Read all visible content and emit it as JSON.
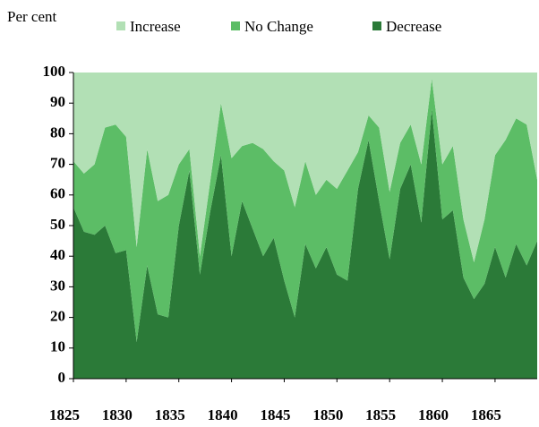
{
  "chart_data": {
    "type": "stacked_area",
    "y_label": "Per cent",
    "x": [
      1825,
      1826,
      1827,
      1828,
      1829,
      1830,
      1831,
      1832,
      1833,
      1834,
      1835,
      1836,
      1837,
      1838,
      1839,
      1840,
      1841,
      1842,
      1843,
      1844,
      1845,
      1846,
      1847,
      1848,
      1849,
      1850,
      1851,
      1852,
      1853,
      1854,
      1855,
      1856,
      1857,
      1858,
      1859,
      1860,
      1861,
      1862,
      1863,
      1864,
      1865,
      1866,
      1867,
      1868,
      1869
    ],
    "series": [
      {
        "name": "Decrease",
        "color": "#2b7a38",
        "values": [
          56,
          48,
          47,
          50,
          41,
          42,
          12,
          37,
          21,
          20,
          50,
          68,
          34,
          55,
          73,
          40,
          58,
          49,
          40,
          46,
          32,
          20,
          44,
          36,
          43,
          34,
          32,
          62,
          78,
          58,
          39,
          62,
          70,
          51,
          88,
          52,
          55,
          33,
          26,
          31,
          43,
          33,
          44,
          37,
          45
        ]
      },
      {
        "name": "No Change",
        "color": "#5cbd66",
        "values": [
          15,
          19,
          23,
          32,
          42,
          37,
          31,
          38,
          37,
          40,
          20,
          7,
          6,
          10,
          17,
          32,
          18,
          28,
          35,
          25,
          36,
          36,
          27,
          24,
          22,
          28,
          36,
          12,
          8,
          24,
          22,
          15,
          13,
          19,
          10,
          18,
          21,
          19,
          12,
          21,
          30,
          45,
          41,
          46,
          20
        ]
      },
      {
        "name": "Increase",
        "color": "#b2e0b5",
        "values": [
          29,
          33,
          30,
          18,
          17,
          21,
          57,
          25,
          42,
          40,
          30,
          25,
          60,
          35,
          10,
          28,
          24,
          23,
          25,
          29,
          32,
          44,
          29,
          40,
          35,
          38,
          32,
          26,
          14,
          18,
          39,
          23,
          17,
          30,
          2,
          30,
          24,
          48,
          62,
          48,
          27,
          22,
          15,
          17,
          35
        ]
      }
    ],
    "legend_order": [
      2,
      1,
      0
    ],
    "xlim": [
      1825,
      1869
    ],
    "xticks": [
      1825,
      1830,
      1835,
      1840,
      1845,
      1850,
      1855,
      1860,
      1865
    ],
    "ylim": [
      0,
      100
    ],
    "yticks": [
      0,
      10,
      20,
      30,
      40,
      50,
      60,
      70,
      80,
      90,
      100
    ]
  }
}
